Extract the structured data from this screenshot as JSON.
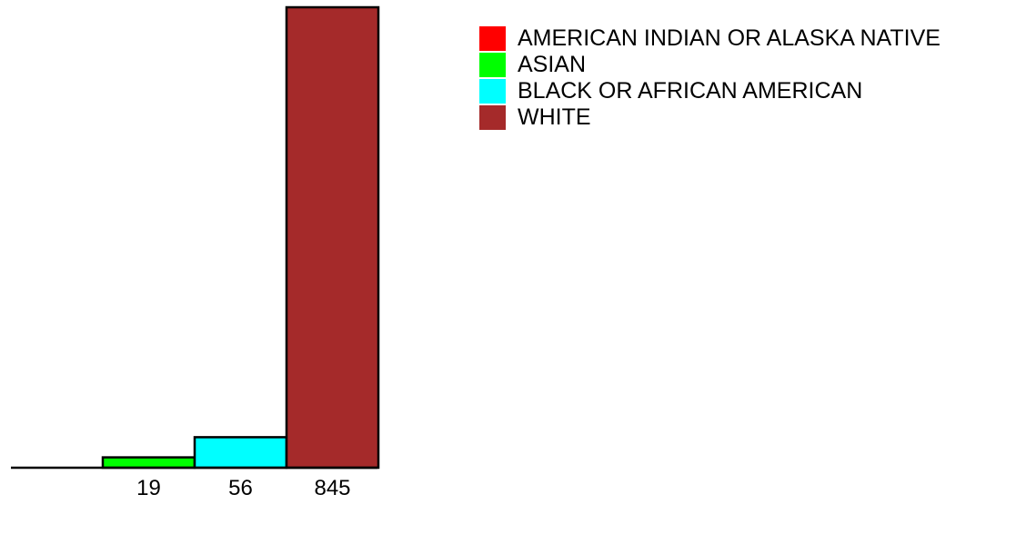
{
  "chart_data": {
    "type": "bar",
    "categories": [
      "AMERICAN INDIAN OR ALASKA NATIVE",
      "ASIAN",
      "BLACK OR AFRICAN AMERICAN",
      "WHITE"
    ],
    "values": [
      0,
      19,
      56,
      845
    ],
    "data_labels": [
      "",
      "19",
      "56",
      "845"
    ],
    "colors": [
      "#ff0000",
      "#00ff00",
      "#00ffff",
      "#a52a2a"
    ],
    "ylim": [
      0,
      845
    ],
    "grid": false,
    "legend_position": "top-right",
    "legend": [
      {
        "label": "AMERICAN INDIAN OR ALASKA NATIVE",
        "color": "#ff0000"
      },
      {
        "label": "ASIAN",
        "color": "#00ff00"
      },
      {
        "label": "BLACK OR AFRICAN AMERICAN",
        "color": "#00ffff"
      },
      {
        "label": "WHITE",
        "color": "#a52a2a"
      }
    ]
  }
}
